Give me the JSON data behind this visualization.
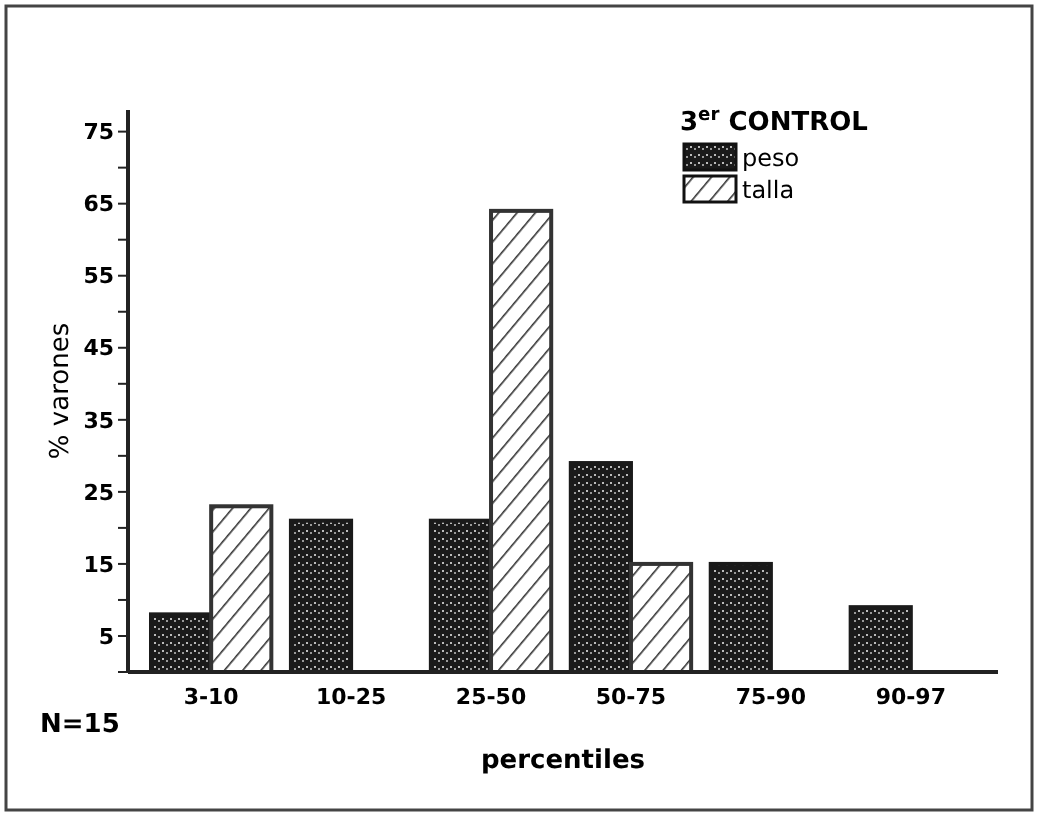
{
  "chart_data": {
    "type": "bar",
    "legend_title": "3$^{er}$ CONTROL",
    "xlabel": "percentiles",
    "ylabel": "% varones",
    "annotations": [
      "N=15"
    ],
    "categories": [
      "3-10",
      "10-25",
      "25-50",
      "50-75",
      "75-90",
      "90-97"
    ],
    "series": [
      {
        "name": "peso",
        "color": "#1a1a1a",
        "values": [
          8,
          21,
          21,
          29,
          15,
          9
        ]
      },
      {
        "name": "talla",
        "color": "#333333",
        "values": [
          23,
          null,
          64,
          15,
          null,
          null
        ]
      }
    ],
    "ylim": [
      0,
      78
    ],
    "yticks": [
      {
        "value": 0,
        "label": null
      },
      5,
      {
        "value": 10,
        "label": null
      },
      15,
      {
        "value": 20,
        "label": null
      },
      25,
      {
        "value": 30,
        "label": null
      },
      35,
      {
        "value": 40,
        "label": null
      },
      45,
      {
        "value": 50,
        "label": null
      },
      55,
      {
        "value": 60,
        "label": null
      },
      65,
      {
        "value": 70,
        "label": null
      },
      75
    ],
    "legend": "top right",
    "grid": false
  }
}
